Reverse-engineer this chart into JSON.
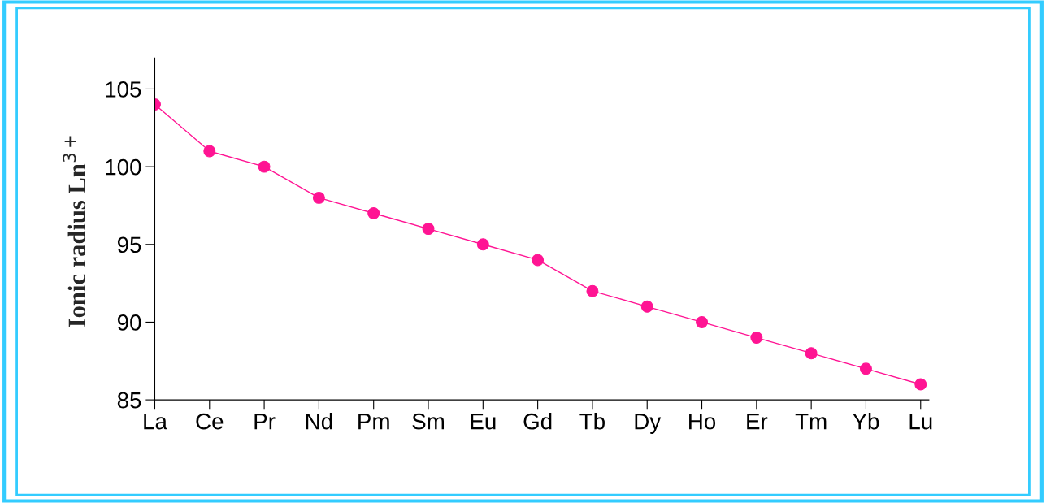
{
  "chart_data": {
    "type": "line",
    "ylabel": "Ionic radius Ln$^{3+}$",
    "categories": [
      "La",
      "Ce",
      "Pr",
      "Nd",
      "Pm",
      "Sm",
      "Eu",
      "Gd",
      "Tb",
      "Dy",
      "Ho",
      "Er",
      "Tm",
      "Yb",
      "Lu"
    ],
    "series": [
      {
        "color": "#ff1493",
        "values": [
          104,
          101,
          100,
          98,
          97,
          96,
          95,
          94,
          92,
          91,
          90,
          89,
          88,
          87,
          86
        ]
      }
    ],
    "ylim": [
      85,
      107
    ],
    "yticks": [
      85,
      90,
      95,
      100,
      105
    ],
    "grid": false,
    "legend": false,
    "marker": "circle",
    "line_style": "solid"
  }
}
